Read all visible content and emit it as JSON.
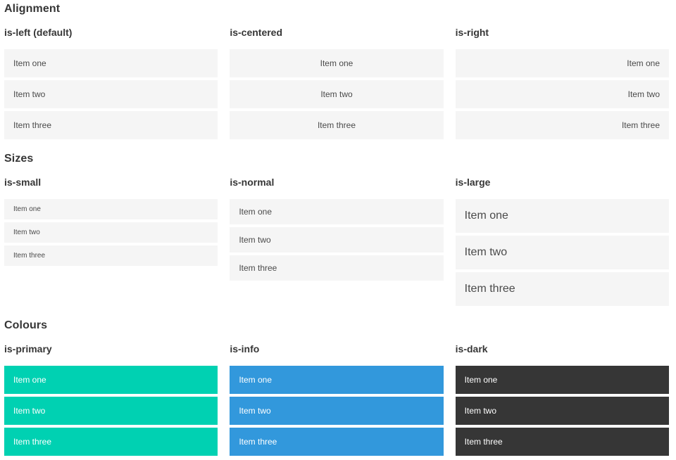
{
  "colors": {
    "primary": "#00d1b2",
    "info": "#3298dc",
    "dark": "#363636",
    "item_background": "#f5f5f5",
    "item_text": "#4a4a4a",
    "heading_text": "#363636",
    "colored_item_text": "#ffffff"
  },
  "sections": [
    {
      "title": "Alignment",
      "variants": [
        {
          "label": "is-left (default)",
          "items": [
            "Item one",
            "Item two",
            "Item three"
          ]
        },
        {
          "label": "is-centered",
          "items": [
            "Item one",
            "Item two",
            "Item three"
          ]
        },
        {
          "label": "is-right",
          "items": [
            "Item one",
            "Item two",
            "Item three"
          ]
        }
      ]
    },
    {
      "title": "Sizes",
      "variants": [
        {
          "label": "is-small",
          "items": [
            "Item one",
            "Item two",
            "Item three"
          ]
        },
        {
          "label": "is-normal",
          "items": [
            "Item one",
            "Item two",
            "Item three"
          ]
        },
        {
          "label": "is-large",
          "items": [
            "Item one",
            "Item two",
            "Item three"
          ]
        }
      ]
    },
    {
      "title": "Colours",
      "variants": [
        {
          "label": "is-primary",
          "items": [
            "Item one",
            "Item two",
            "Item three"
          ]
        },
        {
          "label": "is-info",
          "items": [
            "Item one",
            "Item two",
            "Item three"
          ]
        },
        {
          "label": "is-dark",
          "items": [
            "Item one",
            "Item two",
            "Item three"
          ]
        }
      ]
    }
  ]
}
